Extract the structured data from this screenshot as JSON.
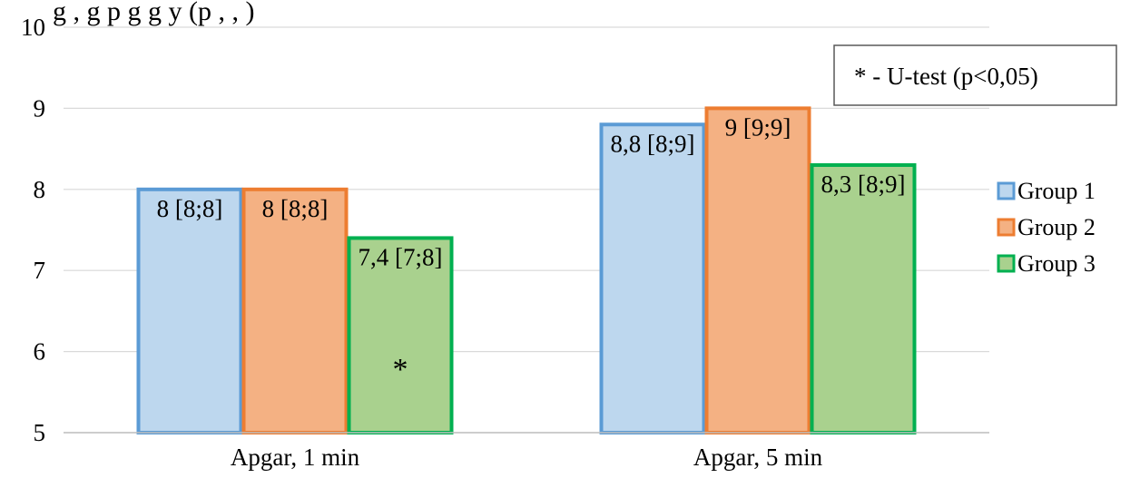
{
  "title_fragment": "g     ,                g      p   g         g      y       (p    ,   ,      )",
  "note": "* - U-test (p<0,05)",
  "chart_data": {
    "type": "bar",
    "categories": [
      "Apgar, 1 min",
      "Apgar, 5 min"
    ],
    "series": [
      {
        "name": "Group 1",
        "values": [
          8,
          8.8
        ],
        "labels": [
          "8 [8;8]",
          "8,8 [8;9]"
        ],
        "fill": "#bdd7ee",
        "stroke": "#5b9bd5"
      },
      {
        "name": "Group 2",
        "values": [
          8,
          9
        ],
        "labels": [
          "8 [8;8]",
          "9 [9;9]"
        ],
        "fill": "#f4b183",
        "stroke": "#ed7d31"
      },
      {
        "name": "Group 3",
        "values": [
          7.4,
          8.3
        ],
        "labels": [
          "7,4 [7;8]",
          "8,3 [8;9]"
        ],
        "fill": "#a9d18e",
        "stroke": "#00b050"
      }
    ],
    "ylim": [
      5,
      10
    ],
    "yticks": [
      "5",
      "6",
      "7",
      "8",
      "9",
      "10"
    ],
    "grid": true,
    "legend_position": "right",
    "annotations": [
      {
        "text": "*",
        "category": "Apgar, 1 min",
        "series": "Group 3"
      }
    ]
  }
}
